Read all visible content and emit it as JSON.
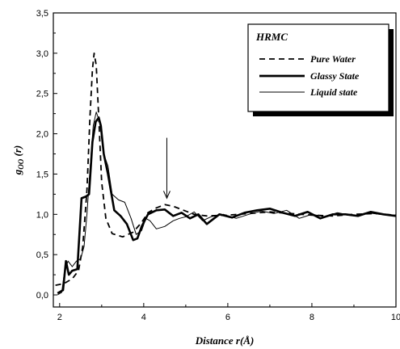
{
  "chart_data": {
    "type": "line",
    "xlabel": "Distance r(Å)",
    "ylabel_main": "g",
    "ylabel_sub": "OO",
    "ylabel_tail": " (r)",
    "xlim": [
      1.85,
      10
    ],
    "ylim": [
      -0.15,
      3.5
    ],
    "x_ticks": [
      2,
      4,
      6,
      8,
      10
    ],
    "x_tick_labels": [
      "2",
      "4",
      "6",
      "8",
      "10"
    ],
    "y_ticks": [
      0.0,
      0.5,
      1.0,
      1.5,
      2.0,
      2.5,
      3.0,
      3.5
    ],
    "y_tick_labels": [
      "0,0",
      "0,5",
      "1,0",
      "1,5",
      "2,0",
      "2,5",
      "3,0",
      "3,5"
    ],
    "grid": false,
    "legend": {
      "title": "HRMC",
      "placement": "top-right",
      "entries": [
        "Pure Water",
        "Glassy State",
        "Liquid state"
      ]
    },
    "annotation_arrow": {
      "x": 4.55,
      "y_from": 1.95,
      "y_to": 1.2
    },
    "series": [
      {
        "name": "Pure Water",
        "style": "dashed",
        "color": "#000000",
        "points": [
          [
            1.9,
            0.12
          ],
          [
            2.1,
            0.14
          ],
          [
            2.3,
            0.2
          ],
          [
            2.45,
            0.3
          ],
          [
            2.55,
            0.6
          ],
          [
            2.65,
            1.3
          ],
          [
            2.72,
            2.2
          ],
          [
            2.78,
            2.8
          ],
          [
            2.82,
            3.0
          ],
          [
            2.87,
            2.85
          ],
          [
            2.93,
            2.2
          ],
          [
            3.0,
            1.4
          ],
          [
            3.1,
            0.95
          ],
          [
            3.25,
            0.76
          ],
          [
            3.5,
            0.72
          ],
          [
            3.75,
            0.78
          ],
          [
            3.95,
            0.9
          ],
          [
            4.1,
            1.02
          ],
          [
            4.3,
            1.08
          ],
          [
            4.5,
            1.12
          ],
          [
            4.7,
            1.1
          ],
          [
            4.9,
            1.06
          ],
          [
            5.2,
            1.0
          ],
          [
            5.5,
            0.98
          ],
          [
            6.0,
            0.99
          ],
          [
            6.5,
            1.01
          ],
          [
            7.0,
            1.03
          ],
          [
            7.5,
            1.01
          ],
          [
            8.0,
            0.99
          ],
          [
            8.5,
            0.98
          ],
          [
            9.0,
            1.0
          ],
          [
            9.5,
            1.01
          ],
          [
            10.0,
            0.99
          ]
        ]
      },
      {
        "name": "Glassy State",
        "style": "thick",
        "color": "#000000",
        "points": [
          [
            1.95,
            0.02
          ],
          [
            2.08,
            0.06
          ],
          [
            2.15,
            0.42
          ],
          [
            2.22,
            0.25
          ],
          [
            2.3,
            0.3
          ],
          [
            2.42,
            0.32
          ],
          [
            2.52,
            1.2
          ],
          [
            2.62,
            1.22
          ],
          [
            2.7,
            1.25
          ],
          [
            2.78,
            1.9
          ],
          [
            2.86,
            2.15
          ],
          [
            2.93,
            2.2
          ],
          [
            2.98,
            2.1
          ],
          [
            3.05,
            1.75
          ],
          [
            3.15,
            1.5
          ],
          [
            3.3,
            1.05
          ],
          [
            3.45,
            0.98
          ],
          [
            3.6,
            0.88
          ],
          [
            3.75,
            0.68
          ],
          [
            3.85,
            0.7
          ],
          [
            3.95,
            0.85
          ],
          [
            4.1,
            1.0
          ],
          [
            4.3,
            1.05
          ],
          [
            4.5,
            1.06
          ],
          [
            4.7,
            0.98
          ],
          [
            4.9,
            1.02
          ],
          [
            5.1,
            0.95
          ],
          [
            5.3,
            1.0
          ],
          [
            5.5,
            0.88
          ],
          [
            5.8,
            1.0
          ],
          [
            6.1,
            0.96
          ],
          [
            6.4,
            1.02
          ],
          [
            6.7,
            1.05
          ],
          [
            7.0,
            1.07
          ],
          [
            7.3,
            1.02
          ],
          [
            7.6,
            0.98
          ],
          [
            7.9,
            1.03
          ],
          [
            8.2,
            0.95
          ],
          [
            8.5,
            1.0
          ],
          [
            8.8,
            1.0
          ],
          [
            9.1,
            0.98
          ],
          [
            9.4,
            1.03
          ],
          [
            9.7,
            1.0
          ],
          [
            10.0,
            0.98
          ]
        ]
      },
      {
        "name": "Liquid state",
        "style": "thin",
        "color": "#000000",
        "points": [
          [
            1.95,
            0.0
          ],
          [
            2.05,
            0.03
          ],
          [
            2.12,
            0.3
          ],
          [
            2.2,
            0.42
          ],
          [
            2.3,
            0.35
          ],
          [
            2.4,
            0.42
          ],
          [
            2.5,
            0.45
          ],
          [
            2.58,
            0.6
          ],
          [
            2.65,
            1.0
          ],
          [
            2.72,
            1.55
          ],
          [
            2.8,
            2.1
          ],
          [
            2.87,
            2.27
          ],
          [
            2.95,
            2.15
          ],
          [
            3.05,
            1.75
          ],
          [
            3.15,
            1.6
          ],
          [
            3.25,
            1.25
          ],
          [
            3.4,
            1.18
          ],
          [
            3.55,
            1.15
          ],
          [
            3.7,
            0.95
          ],
          [
            3.82,
            0.75
          ],
          [
            3.95,
            0.8
          ],
          [
            4.05,
            0.95
          ],
          [
            4.15,
            0.92
          ],
          [
            4.3,
            0.82
          ],
          [
            4.5,
            0.85
          ],
          [
            4.7,
            0.92
          ],
          [
            4.85,
            0.95
          ],
          [
            5.0,
            0.97
          ],
          [
            5.2,
            1.03
          ],
          [
            5.4,
            0.92
          ],
          [
            5.6,
            0.97
          ],
          [
            5.9,
            1.0
          ],
          [
            6.2,
            0.95
          ],
          [
            6.5,
            1.0
          ],
          [
            6.8,
            1.04
          ],
          [
            7.1,
            1.01
          ],
          [
            7.4,
            1.05
          ],
          [
            7.7,
            0.95
          ],
          [
            8.0,
            1.0
          ],
          [
            8.3,
            0.97
          ],
          [
            8.6,
            1.02
          ],
          [
            9.0,
            0.98
          ],
          [
            9.3,
            1.02
          ],
          [
            9.6,
            1.0
          ],
          [
            10.0,
            0.99
          ]
        ]
      }
    ]
  }
}
